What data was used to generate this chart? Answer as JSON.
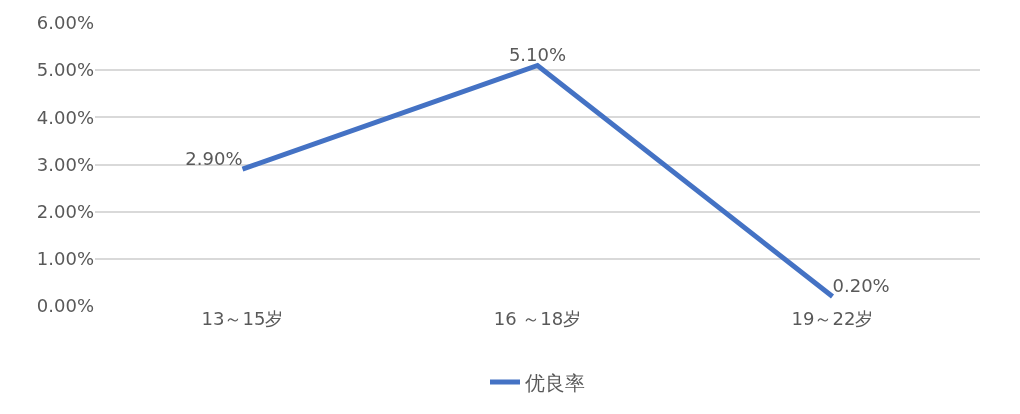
{
  "chart_data": {
    "type": "line",
    "categories": [
      "13～15岁",
      "16 ～18岁",
      "19～22岁"
    ],
    "series": [
      {
        "name": "优良率",
        "color": "#4472c4",
        "values": [
          2.9,
          5.1,
          0.2
        ],
        "value_labels": [
          "2.90%",
          "5.10%",
          "0.20%"
        ]
      }
    ],
    "ylim": [
      0,
      6
    ],
    "yticks": [
      {
        "value": 0,
        "label": "0.00%"
      },
      {
        "value": 1,
        "label": "1.00%"
      },
      {
        "value": 2,
        "label": "2.00%"
      },
      {
        "value": 3,
        "label": "3.00%"
      },
      {
        "value": 4,
        "label": "4.00%"
      },
      {
        "value": 5,
        "label": "5.00%"
      },
      {
        "value": 6,
        "label": "6.00%"
      }
    ],
    "grid": "y",
    "legend": "bottom",
    "marker": "none",
    "line_style": "solid"
  }
}
